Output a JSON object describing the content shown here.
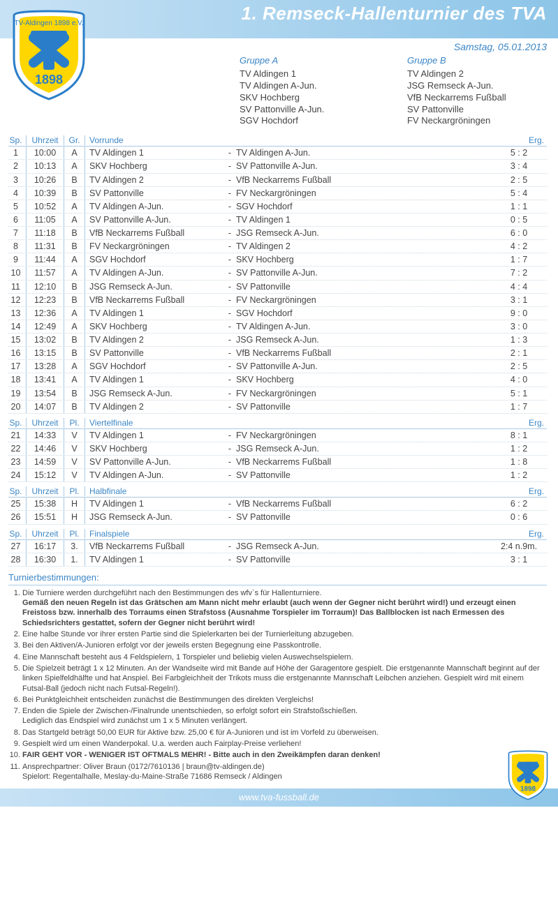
{
  "header": {
    "title": "1. Remseck-Hallenturnier des TVA",
    "date": "Samstag, 05.01.2013",
    "logo_text_top": "TV-Aldingen 1898 e.V.",
    "logo_year": "1898"
  },
  "colors": {
    "accent": "#3b86c6",
    "header_grad_start": "#c8e2f5",
    "header_grad_end": "#8dc5e8",
    "shield_yellow": "#ffd600",
    "shield_blue": "#2a7ec9",
    "text": "#444444",
    "border": "#a9c9e4"
  },
  "groups": [
    {
      "title": "Gruppe A",
      "teams": [
        "TV Aldingen 1",
        "TV Aldingen A-Jun.",
        "SKV Hochberg",
        "SV Pattonville A-Jun.",
        "SGV Hochdorf"
      ]
    },
    {
      "title": "Gruppe B",
      "teams": [
        "TV Aldingen 2",
        "JSG Remseck A-Jun.",
        "VfB Neckarrems Fußball",
        "SV Pattonville",
        "FV Neckargröningen"
      ]
    }
  ],
  "blocks": [
    {
      "headers": {
        "sp": "Sp.",
        "time": "Uhrzeit",
        "gr": "Gr.",
        "round": "Vorrunde",
        "erg": "Erg."
      },
      "rows": [
        {
          "sp": "1",
          "time": "10:00",
          "gr": "A",
          "home": "TV Aldingen 1",
          "away": "TV Aldingen A-Jun.",
          "erg": "5 : 2"
        },
        {
          "sp": "2",
          "time": "10:13",
          "gr": "A",
          "home": "SKV Hochberg",
          "away": "SV Pattonville A-Jun.",
          "erg": "3 : 4"
        },
        {
          "sp": "3",
          "time": "10:26",
          "gr": "B",
          "home": "TV Aldingen 2",
          "away": "VfB Neckarrems Fußball",
          "erg": "2 : 5"
        },
        {
          "sp": "4",
          "time": "10:39",
          "gr": "B",
          "home": "SV Pattonville",
          "away": "FV Neckargröningen",
          "erg": "5 : 4"
        },
        {
          "sp": "5",
          "time": "10:52",
          "gr": "A",
          "home": "TV Aldingen A-Jun.",
          "away": "SGV Hochdorf",
          "erg": "1 : 1"
        },
        {
          "sp": "6",
          "time": "11:05",
          "gr": "A",
          "home": "SV Pattonville A-Jun.",
          "away": "TV Aldingen 1",
          "erg": "0 : 5"
        },
        {
          "sp": "7",
          "time": "11:18",
          "gr": "B",
          "home": "VfB Neckarrems Fußball",
          "away": "JSG Remseck A-Jun.",
          "erg": "6 : 0"
        },
        {
          "sp": "8",
          "time": "11:31",
          "gr": "B",
          "home": "FV Neckargröningen",
          "away": "TV Aldingen 2",
          "erg": "4 : 2"
        },
        {
          "sp": "9",
          "time": "11:44",
          "gr": "A",
          "home": "SGV Hochdorf",
          "away": "SKV Hochberg",
          "erg": "1 : 7"
        },
        {
          "sp": "10",
          "time": "11:57",
          "gr": "A",
          "home": "TV Aldingen A-Jun.",
          "away": "SV Pattonville A-Jun.",
          "erg": "7 : 2"
        },
        {
          "sp": "11",
          "time": "12:10",
          "gr": "B",
          "home": "JSG Remseck A-Jun.",
          "away": "SV Pattonville",
          "erg": "4 : 4"
        },
        {
          "sp": "12",
          "time": "12:23",
          "gr": "B",
          "home": "VfB Neckarrems Fußball",
          "away": "FV Neckargröningen",
          "erg": "3 : 1"
        },
        {
          "sp": "13",
          "time": "12:36",
          "gr": "A",
          "home": "TV Aldingen 1",
          "away": "SGV Hochdorf",
          "erg": "9 : 0"
        },
        {
          "sp": "14",
          "time": "12:49",
          "gr": "A",
          "home": "SKV Hochberg",
          "away": "TV Aldingen A-Jun.",
          "erg": "3 : 0"
        },
        {
          "sp": "15",
          "time": "13:02",
          "gr": "B",
          "home": "TV Aldingen 2",
          "away": "JSG Remseck A-Jun.",
          "erg": "1 : 3"
        },
        {
          "sp": "16",
          "time": "13:15",
          "gr": "B",
          "home": "SV Pattonville",
          "away": "VfB Neckarrems Fußball",
          "erg": "2 : 1"
        },
        {
          "sp": "17",
          "time": "13:28",
          "gr": "A",
          "home": "SGV Hochdorf",
          "away": "SV Pattonville A-Jun.",
          "erg": "2 : 5"
        },
        {
          "sp": "18",
          "time": "13:41",
          "gr": "A",
          "home": "TV Aldingen 1",
          "away": "SKV Hochberg",
          "erg": "4 : 0"
        },
        {
          "sp": "19",
          "time": "13:54",
          "gr": "B",
          "home": "JSG Remseck A-Jun.",
          "away": "FV Neckargröningen",
          "erg": "5 : 1"
        },
        {
          "sp": "20",
          "time": "14:07",
          "gr": "B",
          "home": "TV Aldingen 2",
          "away": "SV Pattonville",
          "erg": "1 : 7"
        }
      ]
    },
    {
      "headers": {
        "sp": "Sp.",
        "time": "Uhrzeit",
        "gr": "Pl.",
        "round": "Viertelfinale",
        "erg": "Erg."
      },
      "rows": [
        {
          "sp": "21",
          "time": "14:33",
          "gr": "V",
          "home": "TV Aldingen 1",
          "away": "FV Neckargröningen",
          "erg": "8 : 1"
        },
        {
          "sp": "22",
          "time": "14:46",
          "gr": "V",
          "home": "SKV Hochberg",
          "away": "JSG Remseck A-Jun.",
          "erg": "1 : 2"
        },
        {
          "sp": "23",
          "time": "14:59",
          "gr": "V",
          "home": "SV Pattonville A-Jun.",
          "away": "VfB Neckarrems Fußball",
          "erg": "1 : 8"
        },
        {
          "sp": "24",
          "time": "15:12",
          "gr": "V",
          "home": "TV Aldingen A-Jun.",
          "away": "SV Pattonville",
          "erg": "1 : 2"
        }
      ]
    },
    {
      "headers": {
        "sp": "Sp.",
        "time": "Uhrzeit",
        "gr": "Pl.",
        "round": "Halbfinale",
        "erg": "Erg."
      },
      "rows": [
        {
          "sp": "25",
          "time": "15:38",
          "gr": "H",
          "home": "TV Aldingen 1",
          "away": "VfB Neckarrems Fußball",
          "erg": "6 : 2"
        },
        {
          "sp": "26",
          "time": "15:51",
          "gr": "H",
          "home": "JSG Remseck A-Jun.",
          "away": "SV Pattonville",
          "erg": "0 : 6"
        }
      ]
    },
    {
      "headers": {
        "sp": "Sp.",
        "time": "Uhrzeit",
        "gr": "Pl.",
        "round": "Finalspiele",
        "erg": "Erg."
      },
      "rows": [
        {
          "sp": "27",
          "time": "16:17",
          "gr": "3.",
          "home": "VfB Neckarrems Fußball",
          "away": "JSG Remseck A-Jun.",
          "erg": "2:4 n.9m."
        },
        {
          "sp": "28",
          "time": "16:30",
          "gr": "1.",
          "home": "TV Aldingen 1",
          "away": "SV Pattonville",
          "erg": "3 : 1"
        }
      ]
    }
  ],
  "rules": {
    "title": "Turnierbestimmungen:",
    "items": [
      {
        "n": "1.",
        "text": "Die Turniere werden durchgeführt nach den Bestimmungen des wfv`s für Hallenturniere.\nGemäß den neuen Regeln ist das Grätschen am Mann nicht mehr erlaubt (auch wenn der Gegner nicht berührt wird!) und erzeugt einen Freistoss bzw. innerhalb des Torraums einen Strafstoss (Ausnahme Torspieler im Torraum)! Das Ballblocken ist nach Ermessen des Schiedsrichters gestattet, sofern der Gegner nicht berührt wird!",
        "boldLines": [
          1,
          2
        ]
      },
      {
        "n": "2.",
        "text": "Eine halbe Stunde vor ihrer ersten Partie sind die Spielerkarten bei der Turnierleitung abzugeben."
      },
      {
        "n": "3.",
        "text": "Bei den Aktiven/A-Junioren erfolgt vor der jeweils ersten Begegnung eine Passkontrolle."
      },
      {
        "n": "4.",
        "text": "Eine Mannschaft besteht aus 4 Feldspielern, 1 Torspieler und beliebig vielen Auswechselspielern."
      },
      {
        "n": "5.",
        "text": "Die Spielzeit beträgt 1 x 12 Minuten. An der Wandseite wird mit Bande auf Höhe der Garagentore gespielt.  Die erstgenannte Mannschaft beginnt auf der linken Spielfeldhälfte und hat Anspiel. Bei Farbgleichheit der Trikots muss die erstgenannte Mannschaft Leibchen anziehen. Gespielt wird mit einem Futsal-Ball (jedoch nicht nach Futsal-Regeln!)."
      },
      {
        "n": "6.",
        "text": "Bei Punktgleichheit entscheiden zunächst die Bestimmungen des direkten Vergleichs!"
      },
      {
        "n": "7.",
        "text": "Enden die Spiele der Zwischen-/Finalrunde unentschieden, so erfolgt sofort ein Strafstoßschießen.\nLediglich das Endspiel wird zunächst um 1 x 5 Minuten verlängert."
      },
      {
        "n": "8.",
        "text": "Das Startgeld beträgt 50,00 EUR für Aktive bzw. 25,00 € für A-Junioren und ist im Vorfeld zu überweisen."
      },
      {
        "n": "9.",
        "text": "Gespielt wird um einen Wanderpokal. U.a. werden auch Fairplay-Preise verliehen!"
      },
      {
        "n": "10.",
        "text": "FAIR GEHT VOR - WENIGER IST OFTMALS MEHR! - Bitte auch in den Zweikämpfen daran denken!",
        "allBold": true
      },
      {
        "n": "11.",
        "text": "Ansprechpartner:  Oliver Braun (0172/7610136 | braun@tv-aldingen.de)\nSpielort:  Regentalhalle, Meslay-du-Maine-Straße 71686 Remseck / Aldingen"
      }
    ]
  },
  "footer": {
    "url": "www.tva-fussball.de"
  }
}
